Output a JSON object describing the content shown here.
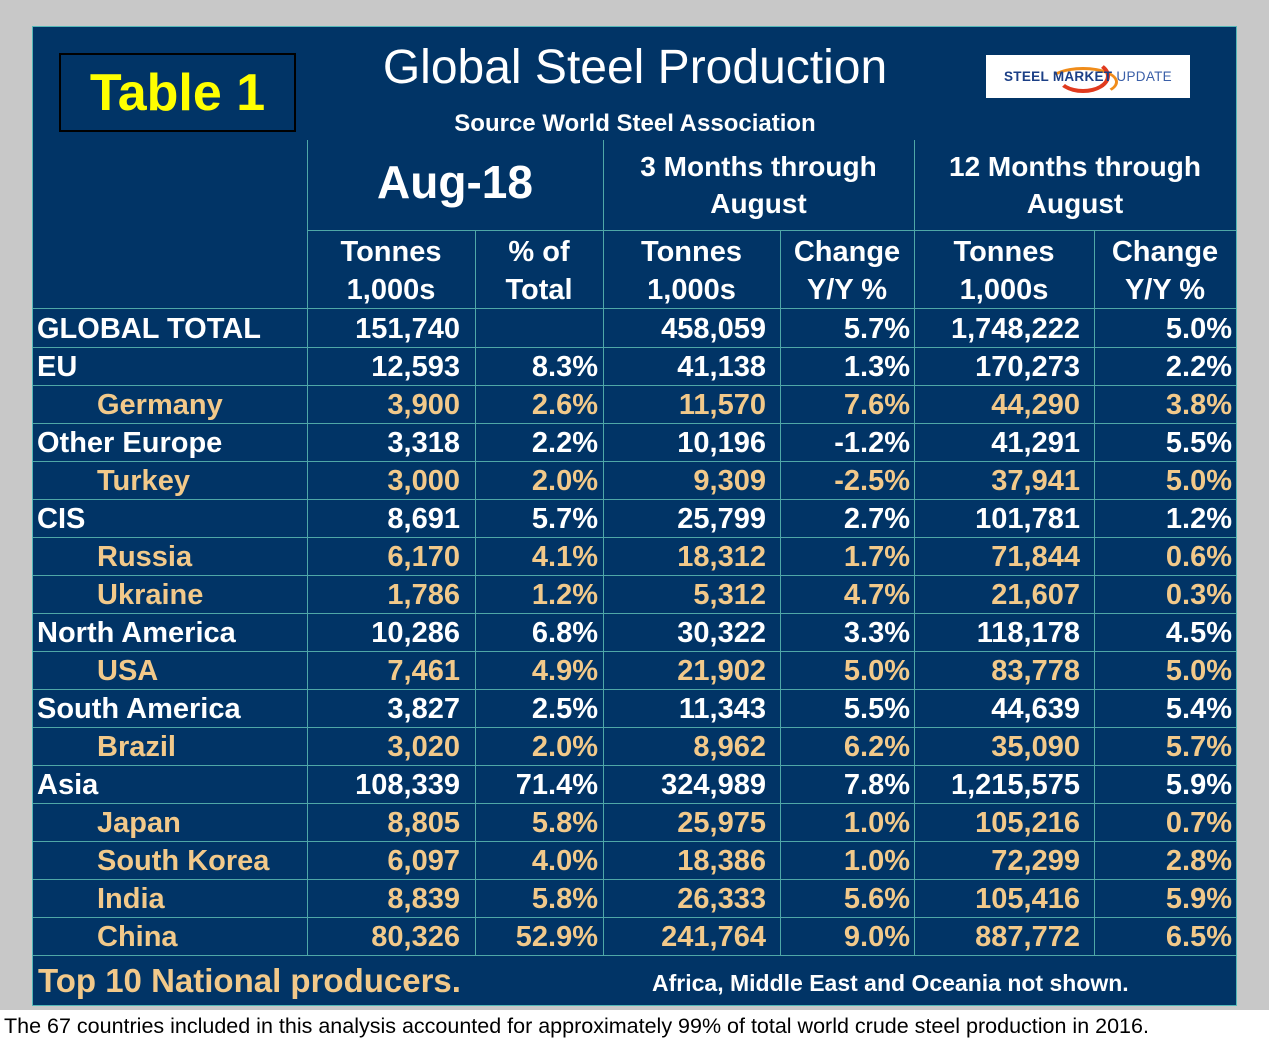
{
  "badge": "Table 1",
  "title": "Global Steel Production",
  "subtitle": "Source World Steel Association",
  "logo": {
    "bold": "STEEL MARKET",
    "light": "UPDATE"
  },
  "groups": {
    "month": "Aug-18",
    "three_line1": "3 Months through",
    "three_line2": "August",
    "twelve_line1": "12 Months through",
    "twelve_line2": "August"
  },
  "columns": [
    {
      "line1": "Tonnes",
      "line2": "1,000s"
    },
    {
      "line1": "% of",
      "line2": "Total"
    },
    {
      "line1": "Tonnes",
      "line2": "1,000s"
    },
    {
      "line1": "Change",
      "line2": "Y/Y %"
    },
    {
      "line1": "Tonnes",
      "line2": "1,000s"
    },
    {
      "line1": "Change",
      "line2": "Y/Y %"
    }
  ],
  "rows": [
    {
      "name": "GLOBAL TOTAL",
      "sub": false,
      "v": [
        "151,740",
        "",
        "458,059",
        "5.7%",
        "1,748,222",
        "5.0%"
      ]
    },
    {
      "name": "EU",
      "sub": false,
      "v": [
        "12,593",
        "8.3%",
        "41,138",
        "1.3%",
        "170,273",
        "2.2%"
      ]
    },
    {
      "name": "Germany",
      "sub": true,
      "v": [
        "3,900",
        "2.6%",
        "11,570",
        "7.6%",
        "44,290",
        "3.8%"
      ]
    },
    {
      "name": "Other Europe",
      "sub": false,
      "v": [
        "3,318",
        "2.2%",
        "10,196",
        "-1.2%",
        "41,291",
        "5.5%"
      ]
    },
    {
      "name": "Turkey",
      "sub": true,
      "v": [
        "3,000",
        "2.0%",
        "9,309",
        "-2.5%",
        "37,941",
        "5.0%"
      ]
    },
    {
      "name": "CIS",
      "sub": false,
      "v": [
        "8,691",
        "5.7%",
        "25,799",
        "2.7%",
        "101,781",
        "1.2%"
      ]
    },
    {
      "name": "Russia",
      "sub": true,
      "v": [
        "6,170",
        "4.1%",
        "18,312",
        "1.7%",
        "71,844",
        "0.6%"
      ]
    },
    {
      "name": "Ukraine",
      "sub": true,
      "v": [
        "1,786",
        "1.2%",
        "5,312",
        "4.7%",
        "21,607",
        "0.3%"
      ]
    },
    {
      "name": "North America",
      "sub": false,
      "v": [
        "10,286",
        "6.8%",
        "30,322",
        "3.3%",
        "118,178",
        "4.5%"
      ]
    },
    {
      "name": "USA",
      "sub": true,
      "v": [
        "7,461",
        "4.9%",
        "21,902",
        "5.0%",
        "83,778",
        "5.0%"
      ]
    },
    {
      "name": "South America",
      "sub": false,
      "v": [
        "3,827",
        "2.5%",
        "11,343",
        "5.5%",
        "44,639",
        "5.4%"
      ]
    },
    {
      "name": "Brazil",
      "sub": true,
      "v": [
        "3,020",
        "2.0%",
        "8,962",
        "6.2%",
        "35,090",
        "5.7%"
      ]
    },
    {
      "name": "Asia",
      "sub": false,
      "v": [
        "108,339",
        "71.4%",
        "324,989",
        "7.8%",
        "1,215,575",
        "5.9%"
      ]
    },
    {
      "name": "Japan",
      "sub": true,
      "v": [
        "8,805",
        "5.8%",
        "25,975",
        "1.0%",
        "105,216",
        "0.7%"
      ]
    },
    {
      "name": "South Korea",
      "sub": true,
      "v": [
        "6,097",
        "4.0%",
        "18,386",
        "1.0%",
        "72,299",
        "2.8%"
      ]
    },
    {
      "name": "India",
      "sub": true,
      "v": [
        "8,839",
        "5.8%",
        "26,333",
        "5.6%",
        "105,416",
        "5.9%"
      ]
    },
    {
      "name": "China",
      "sub": true,
      "v": [
        "80,326",
        "52.9%",
        "241,764",
        "9.0%",
        "887,772",
        "6.5%"
      ]
    }
  ],
  "footer_left": "Top 10 National producers.",
  "footer_right": "Africa, Middle East and Oceania not shown.",
  "note": "The 67 countries included in this analysis accounted for approximately 99% of total world crude steel production in 2016.",
  "colors": {
    "panel": "#013466",
    "grid": "#4fa7a7",
    "badge_text": "#ffff00",
    "subregion_text": "#f2c98a",
    "frame": "#c8c8c8"
  }
}
